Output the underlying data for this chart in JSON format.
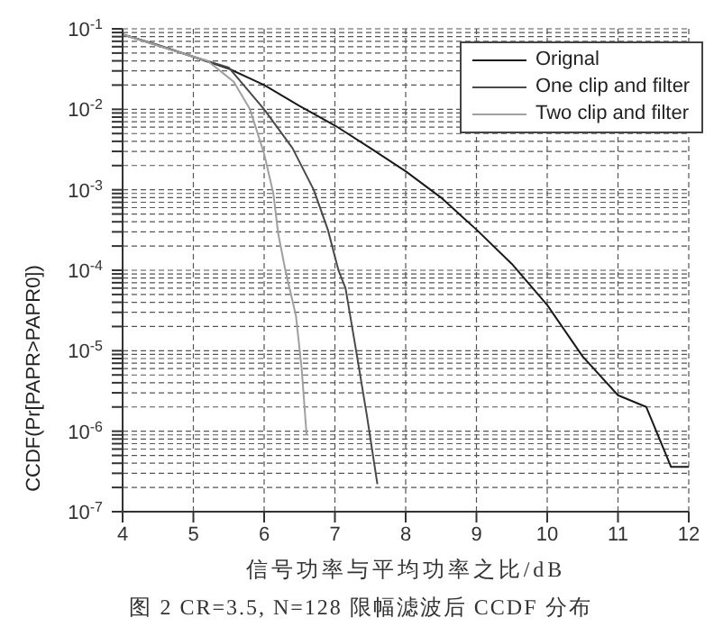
{
  "chart_data": {
    "type": "line",
    "xlabel": "信号功率与平均功率之比/dB",
    "ylabel": "CCDF(Pr[PAPR>PAPR0])",
    "annotations": [
      "图 2 CR=3.5, N=128 限幅滤波后 CCDF 分布"
    ],
    "xlim": [
      4,
      12
    ],
    "xticks": [
      4,
      5,
      6,
      7,
      8,
      9,
      10,
      11,
      12
    ],
    "ylim": [
      1e-07,
      0.1
    ],
    "log": true,
    "yticks": [
      {
        "value": 1e-07,
        "label": "10$^{-7}$"
      },
      {
        "value": 2e-07,
        "label": null
      },
      {
        "value": 3e-07,
        "label": null
      },
      {
        "value": 4e-07,
        "label": null
      },
      {
        "value": 5e-07,
        "label": null
      },
      {
        "value": 6e-07,
        "label": null
      },
      {
        "value": 7e-07,
        "label": null
      },
      {
        "value": 8e-07,
        "label": null
      },
      {
        "value": 9e-07,
        "label": null
      },
      {
        "value": 1e-06,
        "label": "10$^{-6}$"
      },
      {
        "value": 2e-06,
        "label": null
      },
      {
        "value": 3e-06,
        "label": null
      },
      {
        "value": 4e-06,
        "label": null
      },
      {
        "value": 5e-06,
        "label": null
      },
      {
        "value": 6e-06,
        "label": null
      },
      {
        "value": 7e-06,
        "label": null
      },
      {
        "value": 8e-06,
        "label": null
      },
      {
        "value": 9e-06,
        "label": null
      },
      {
        "value": 1e-05,
        "label": "10$^{-5}$"
      },
      {
        "value": 2e-05,
        "label": null
      },
      {
        "value": 3e-05,
        "label": null
      },
      {
        "value": 4e-05,
        "label": null
      },
      {
        "value": 5e-05,
        "label": null
      },
      {
        "value": 6e-05,
        "label": null
      },
      {
        "value": 7e-05,
        "label": null
      },
      {
        "value": 8e-05,
        "label": null
      },
      {
        "value": 9e-05,
        "label": null
      },
      {
        "value": 0.0001,
        "label": "10$^{-4}$"
      },
      {
        "value": 0.0002,
        "label": null
      },
      {
        "value": 0.0003,
        "label": null
      },
      {
        "value": 0.0004,
        "label": null
      },
      {
        "value": 0.0005,
        "label": null
      },
      {
        "value": 0.0006,
        "label": null
      },
      {
        "value": 0.0007,
        "label": null
      },
      {
        "value": 0.0008,
        "label": null
      },
      {
        "value": 0.0009,
        "label": null
      },
      {
        "value": 0.001,
        "label": "10$^{-3}$"
      },
      {
        "value": 0.002,
        "label": null
      },
      {
        "value": 0.003,
        "label": null
      },
      {
        "value": 0.004,
        "label": null
      },
      {
        "value": 0.005,
        "label": null
      },
      {
        "value": 0.006,
        "label": null
      },
      {
        "value": 0.007,
        "label": null
      },
      {
        "value": 0.008,
        "label": null
      },
      {
        "value": 0.009,
        "label": null
      },
      {
        "value": 0.01,
        "label": "10$^{-2}$"
      },
      {
        "value": 0.02,
        "label": null
      },
      {
        "value": 0.03,
        "label": null
      },
      {
        "value": 0.04,
        "label": null
      },
      {
        "value": 0.05,
        "label": null
      },
      {
        "value": 0.06,
        "label": null
      },
      {
        "value": 0.07,
        "label": null
      },
      {
        "value": 0.08,
        "label": null
      },
      {
        "value": 0.09,
        "label": null
      },
      {
        "value": 0.1,
        "label": "10$^{-1}$"
      }
    ],
    "grid": true,
    "legend": "top right",
    "marker": "none",
    "line_style": "solid",
    "series": [
      {
        "name": "Orignal",
        "color": "#1a1a1a",
        "x": [
          4,
          4.5,
          5,
          5.5,
          6,
          6.5,
          7,
          7.5,
          8,
          8.5,
          9,
          9.5,
          10,
          10.5,
          11,
          11.4,
          11.75,
          12
        ],
        "values": [
          0.085,
          0.063,
          0.045,
          0.032,
          0.02,
          0.011,
          0.0063,
          0.0033,
          0.0017,
          0.0008,
          0.00032,
          0.00012,
          3.7e-05,
          8.5e-06,
          2.8e-06,
          2e-06,
          3.6e-07,
          3.6e-07
        ]
      },
      {
        "name": "One clip and filter",
        "color": "#4a4a4a",
        "x": [
          4,
          5,
          5.5,
          6,
          6.4,
          6.7,
          6.9,
          7.05,
          7.15,
          7.3,
          7.45,
          7.6
        ],
        "values": [
          0.085,
          0.045,
          0.033,
          0.01,
          0.0033,
          0.001,
          0.00032,
          0.0001,
          6e-05,
          1e-05,
          1.6e-06,
          2.2e-07
        ]
      },
      {
        "name": "Two clip and filter",
        "color": "#a0a0a0",
        "x": [
          4,
          5,
          5.2,
          5.57,
          5.8,
          6,
          6.13,
          6.2,
          6.3,
          6.45,
          6.53,
          6.6
        ],
        "values": [
          0.085,
          0.045,
          0.04,
          0.022,
          0.01,
          0.0028,
          0.0009,
          0.00028,
          0.0001,
          2.7e-05,
          6e-06,
          9e-07
        ]
      }
    ]
  }
}
